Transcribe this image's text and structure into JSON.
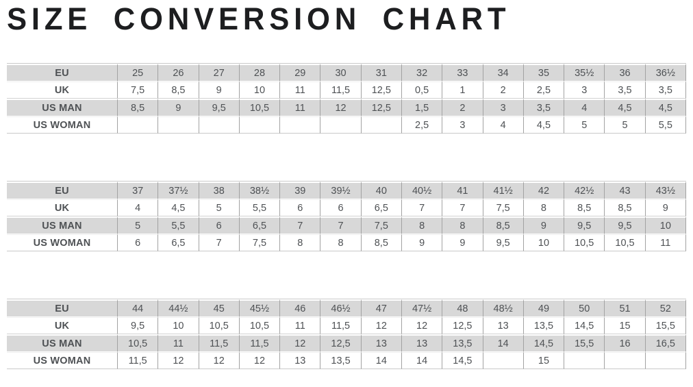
{
  "chart_data": {
    "type": "table",
    "title": "SIZE CONVERSION CHART",
    "layout_hint": "three stacked conversion tables, label column left, 14 size columns each, alternating gray/white rows",
    "tables": [
      {
        "rows": [
          {
            "label": "EU",
            "values": [
              "25",
              "26",
              "27",
              "28",
              "29",
              "30",
              "31",
              "32",
              "33",
              "34",
              "35",
              "35½",
              "36",
              "36½"
            ]
          },
          {
            "label": "UK",
            "values": [
              "7,5",
              "8,5",
              "9",
              "10",
              "11",
              "11,5",
              "12,5",
              "0,5",
              "1",
              "2",
              "2,5",
              "3",
              "3,5",
              "3,5"
            ]
          },
          {
            "label": "US MAN",
            "values": [
              "8,5",
              "9",
              "9,5",
              "10,5",
              "11",
              "12",
              "12,5",
              "1,5",
              "2",
              "3",
              "3,5",
              "4",
              "4,5",
              "4,5"
            ]
          },
          {
            "label": "US WOMAN",
            "values": [
              "",
              "",
              "",
              "",
              "",
              "",
              "",
              "2,5",
              "3",
              "4",
              "4,5",
              "5",
              "5",
              "5,5"
            ]
          }
        ]
      },
      {
        "rows": [
          {
            "label": "EU",
            "values": [
              "37",
              "37½",
              "38",
              "38½",
              "39",
              "39½",
              "40",
              "40½",
              "41",
              "41½",
              "42",
              "42½",
              "43",
              "43½"
            ]
          },
          {
            "label": "UK",
            "values": [
              "4",
              "4,5",
              "5",
              "5,5",
              "6",
              "6",
              "6,5",
              "7",
              "7",
              "7,5",
              "8",
              "8,5",
              "8,5",
              "9"
            ]
          },
          {
            "label": "US MAN",
            "values": [
              "5",
              "5,5",
              "6",
              "6,5",
              "7",
              "7",
              "7,5",
              "8",
              "8",
              "8,5",
              "9",
              "9,5",
              "9,5",
              "10"
            ]
          },
          {
            "label": "US WOMAN",
            "values": [
              "6",
              "6,5",
              "7",
              "7,5",
              "8",
              "8",
              "8,5",
              "9",
              "9",
              "9,5",
              "10",
              "10,5",
              "10,5",
              "11"
            ]
          }
        ]
      },
      {
        "rows": [
          {
            "label": "EU",
            "values": [
              "44",
              "44½",
              "45",
              "45½",
              "46",
              "46½",
              "47",
              "47½",
              "48",
              "48½",
              "49",
              "50",
              "51",
              "52"
            ]
          },
          {
            "label": "UK",
            "values": [
              "9,5",
              "10",
              "10,5",
              "10,5",
              "11",
              "11,5",
              "12",
              "12",
              "12,5",
              "13",
              "13,5",
              "14,5",
              "15",
              "15,5"
            ]
          },
          {
            "label": "US MAN",
            "values": [
              "10,5",
              "11",
              "11,5",
              "11,5",
              "12",
              "12,5",
              "13",
              "13",
              "13,5",
              "14",
              "14,5",
              "15,5",
              "16",
              "16,5"
            ]
          },
          {
            "label": "US WOMAN",
            "values": [
              "11,5",
              "12",
              "12",
              "12",
              "13",
              "13,5",
              "14",
              "14",
              "14,5",
              "",
              "15",
              "",
              "",
              ""
            ]
          }
        ]
      }
    ]
  },
  "colors": {
    "title_text": "#1d1e20",
    "row_alt_bg": "#d8d8d8",
    "row_plain_bg": "#ffffff",
    "column_divider": "#a2a2a2",
    "row_border": "#d2d2d2",
    "label_text": "#1b1d1f",
    "value_text": "#4e5154"
  }
}
